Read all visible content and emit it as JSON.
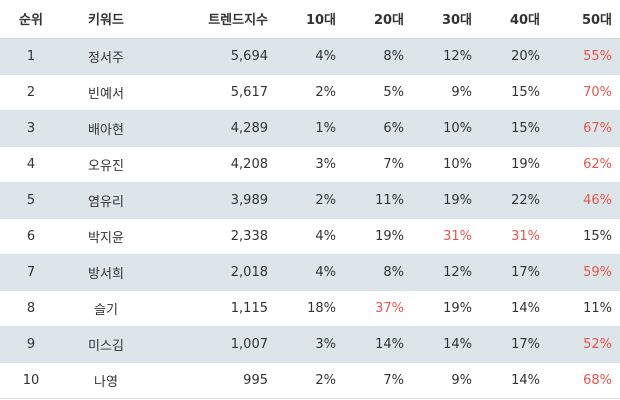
{
  "accent": "#e8554e",
  "row_shade": "#dce5ea",
  "headers": [
    "순위",
    "키워드",
    "트렌드지수",
    "10대",
    "20대",
    "30대",
    "40대",
    "50대"
  ],
  "rows": [
    {
      "rank": "1",
      "keyword": "정서주",
      "trend": "5,694",
      "a10": "4%",
      "a20": "8%",
      "a30": "12%",
      "a40": "20%",
      "a50": "55%",
      "highlight": [
        "a50"
      ]
    },
    {
      "rank": "2",
      "keyword": "빈예서",
      "trend": "5,617",
      "a10": "2%",
      "a20": "5%",
      "a30": "9%",
      "a40": "15%",
      "a50": "70%",
      "highlight": [
        "a50"
      ]
    },
    {
      "rank": "3",
      "keyword": "배아현",
      "trend": "4,289",
      "a10": "1%",
      "a20": "6%",
      "a30": "10%",
      "a40": "15%",
      "a50": "67%",
      "highlight": [
        "a50"
      ]
    },
    {
      "rank": "4",
      "keyword": "오유진",
      "trend": "4,208",
      "a10": "3%",
      "a20": "7%",
      "a30": "10%",
      "a40": "19%",
      "a50": "62%",
      "highlight": [
        "a50"
      ]
    },
    {
      "rank": "5",
      "keyword": "염유리",
      "trend": "3,989",
      "a10": "2%",
      "a20": "11%",
      "a30": "19%",
      "a40": "22%",
      "a50": "46%",
      "highlight": [
        "a50"
      ]
    },
    {
      "rank": "6",
      "keyword": "박지윤",
      "trend": "2,338",
      "a10": "4%",
      "a20": "19%",
      "a30": "31%",
      "a40": "31%",
      "a50": "15%",
      "highlight": [
        "a30",
        "a40"
      ]
    },
    {
      "rank": "7",
      "keyword": "방서희",
      "trend": "2,018",
      "a10": "4%",
      "a20": "8%",
      "a30": "12%",
      "a40": "17%",
      "a50": "59%",
      "highlight": [
        "a50"
      ]
    },
    {
      "rank": "8",
      "keyword": "슬기",
      "trend": "1,115",
      "a10": "18%",
      "a20": "37%",
      "a30": "19%",
      "a40": "14%",
      "a50": "11%",
      "highlight": [
        "a20"
      ]
    },
    {
      "rank": "9",
      "keyword": "미스김",
      "trend": "1,007",
      "a10": "3%",
      "a20": "14%",
      "a30": "14%",
      "a40": "17%",
      "a50": "52%",
      "highlight": [
        "a50"
      ]
    },
    {
      "rank": "10",
      "keyword": "나영",
      "trend": "995",
      "a10": "2%",
      "a20": "7%",
      "a30": "9%",
      "a40": "14%",
      "a50": "68%",
      "highlight": [
        "a50"
      ]
    }
  ]
}
